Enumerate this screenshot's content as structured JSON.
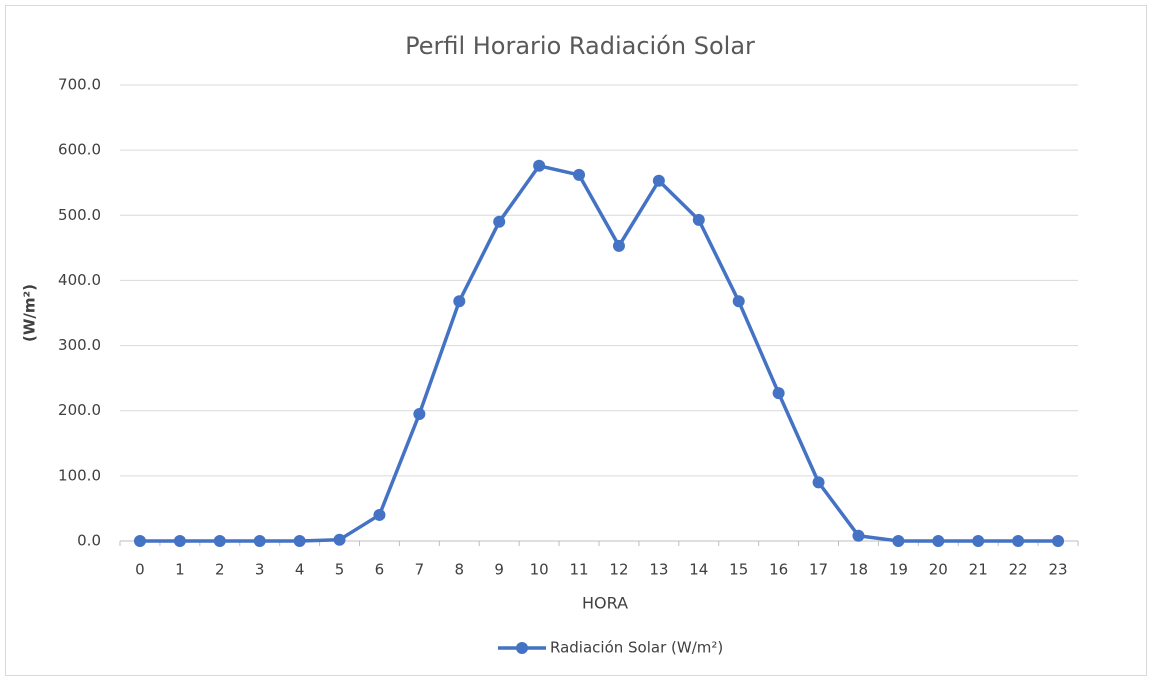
{
  "chart_data": {
    "type": "line",
    "title": "Perfil Horario Radiación Solar",
    "x_label": "HORA",
    "y_label": "(W/m²)",
    "categories": [
      "0",
      "1",
      "2",
      "3",
      "4",
      "5",
      "6",
      "7",
      "8",
      "9",
      "10",
      "11",
      "12",
      "13",
      "14",
      "15",
      "16",
      "17",
      "18",
      "19",
      "20",
      "21",
      "22",
      "23"
    ],
    "series": [
      {
        "name": "Radiación Solar (W/m²)",
        "color": "#4472c4",
        "values": [
          0,
          0,
          0,
          0,
          0,
          2,
          40,
          195,
          368,
          490,
          576,
          562,
          453,
          553,
          493,
          368,
          227,
          90,
          8,
          0,
          0,
          0,
          0,
          0
        ]
      }
    ],
    "ylim": [
      0,
      700
    ],
    "yticks": [
      {
        "value": 0,
        "label": "0.0"
      },
      {
        "value": 100,
        "label": "100.0"
      },
      {
        "value": 200,
        "label": "200.0"
      },
      {
        "value": 300,
        "label": "300.0"
      },
      {
        "value": 400,
        "label": "400.0"
      },
      {
        "value": 500,
        "label": "500.0"
      },
      {
        "value": 600,
        "label": "600.0"
      },
      {
        "value": 700,
        "label": "700.0"
      }
    ],
    "grid": true,
    "legend": "bottom"
  }
}
